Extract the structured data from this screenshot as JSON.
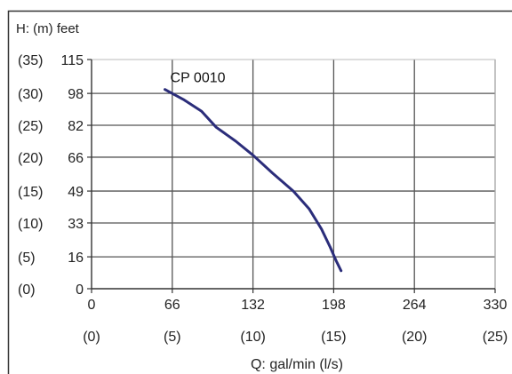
{
  "chart_data": {
    "type": "line",
    "title": "",
    "ylabel": "H: (m) feet",
    "xlabel": "Q: gal/min (l/s)",
    "xlim": [
      0,
      330
    ],
    "ylim": [
      0,
      115
    ],
    "grid": true,
    "y_ticks_feet": [
      "115",
      "98",
      "82",
      "66",
      "49",
      "33",
      "16",
      "0"
    ],
    "y_ticks_m": [
      "(35)",
      "(30)",
      "(25)",
      "(20)",
      "(15)",
      "(10)",
      "(5)",
      "(0)"
    ],
    "y_tick_values": [
      115,
      98,
      82,
      66,
      49,
      33,
      16,
      0
    ],
    "x_ticks_gpm": [
      "0",
      "66",
      "132",
      "198",
      "264",
      "330"
    ],
    "x_ticks_ls": [
      "(0)",
      "(5)",
      "(10)",
      "(15)",
      "(20)",
      "(25)"
    ],
    "x_tick_values": [
      0,
      66,
      132,
      198,
      264,
      330
    ],
    "series": [
      {
        "name": "CP 0010",
        "color": "#2b2d7a",
        "x": [
          60,
          75,
          90,
          102,
          118,
          132,
          148,
          165,
          178,
          188,
          195,
          200,
          204
        ],
        "y": [
          100,
          95,
          89,
          81,
          74,
          67,
          58,
          49,
          40,
          30,
          21,
          14,
          9
        ]
      }
    ]
  }
}
